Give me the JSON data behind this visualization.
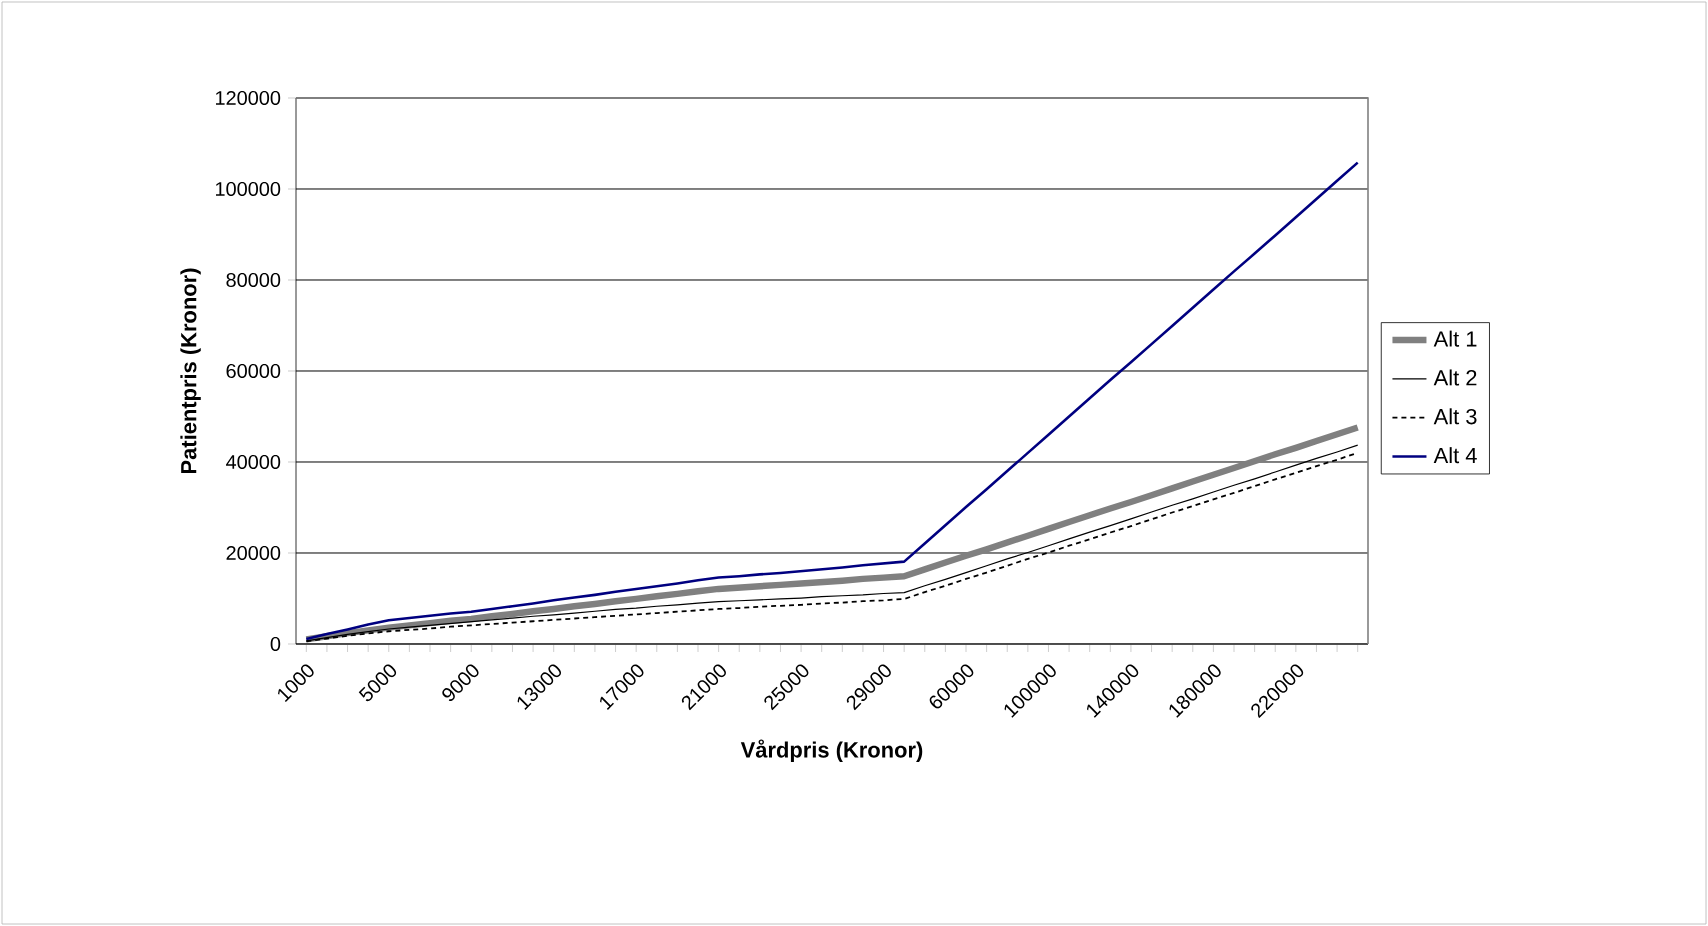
{
  "chart_data": {
    "type": "line",
    "xlabel": "Vårdpris (Kronor)",
    "ylabel": "Patientpris (Kronor)",
    "categories": [
      "1000",
      null,
      null,
      null,
      "5000",
      null,
      null,
      null,
      "9000",
      null,
      null,
      null,
      "13000",
      null,
      null,
      null,
      "17000",
      null,
      null,
      null,
      "21000",
      null,
      null,
      null,
      "25000",
      null,
      null,
      null,
      "29000",
      null,
      null,
      null,
      "60000",
      null,
      null,
      null,
      "100000",
      null,
      null,
      null,
      "140000",
      null,
      null,
      null,
      "180000",
      null,
      null,
      null,
      "220000",
      null,
      null,
      null
    ],
    "series": [
      {
        "name": "Alt 1",
        "color": "#808080",
        "line_style": "solid",
        "values": [
          1000,
          1700,
          2400,
          3000,
          3600,
          4100,
          4600,
          5100,
          5500,
          6100,
          6600,
          7200,
          7700,
          8300,
          8800,
          9400,
          9900,
          10500,
          11000,
          11600,
          12100,
          12400,
          12700,
          13000,
          13300,
          13600,
          13900,
          14300,
          14600,
          14900,
          16400,
          17900,
          19400,
          20800,
          22300,
          23800,
          25300,
          26800,
          28300,
          29800,
          31200,
          32700,
          34200,
          35700,
          37200,
          38700,
          40200,
          41700,
          43100,
          44600,
          46100,
          47600
        ]
      },
      {
        "name": "Alt 2",
        "color": "#000000",
        "line_style": "solid",
        "values": [
          700,
          1400,
          2100,
          2700,
          3300,
          3700,
          4100,
          4500,
          4900,
          5300,
          5700,
          6100,
          6400,
          6800,
          7200,
          7600,
          7900,
          8300,
          8600,
          9000,
          9300,
          9500,
          9700,
          9900,
          10100,
          10400,
          10600,
          10800,
          11100,
          11300,
          12800,
          14200,
          15700,
          17200,
          18700,
          20100,
          21600,
          23100,
          24600,
          26000,
          27500,
          29000,
          30500,
          31900,
          33400,
          34900,
          36300,
          37800,
          39300,
          40800,
          42200,
          43700
        ]
      },
      {
        "name": "Alt 3",
        "color": "#000000",
        "line_style": "dashed",
        "values": [
          600,
          1200,
          1800,
          2300,
          2800,
          3100,
          3400,
          3800,
          4100,
          4400,
          4700,
          5000,
          5300,
          5600,
          5900,
          6200,
          6500,
          6800,
          7100,
          7400,
          7700,
          7900,
          8200,
          8400,
          8600,
          8900,
          9100,
          9400,
          9600,
          9900,
          11400,
          12800,
          14300,
          15700,
          17200,
          18700,
          20100,
          21600,
          23000,
          24500,
          25900,
          27400,
          28900,
          30300,
          31800,
          33200,
          34700,
          36200,
          37600,
          39100,
          40500,
          42000
        ]
      },
      {
        "name": "Alt 4",
        "color": "#000080",
        "line_style": "solid",
        "values": [
          1100,
          2200,
          3200,
          4300,
          5200,
          5700,
          6200,
          6700,
          7100,
          7700,
          8300,
          8900,
          9600,
          10200,
          10800,
          11500,
          12100,
          12700,
          13300,
          14000,
          14600,
          14900,
          15300,
          15600,
          16000,
          16400,
          16800,
          17300,
          17700,
          18100,
          22100,
          26100,
          30100,
          34000,
          38000,
          42000,
          46000,
          50000,
          54000,
          58000,
          61900,
          65900,
          69900,
          73900,
          77900,
          81900,
          85800,
          89800,
          93800,
          97800,
          101800,
          105800
        ]
      }
    ],
    "ylim": [
      0,
      120000
    ],
    "yticks": [
      0,
      20000,
      40000,
      60000,
      80000,
      100000,
      120000
    ],
    "grid": "y",
    "legend": "right",
    "marker": "none"
  }
}
